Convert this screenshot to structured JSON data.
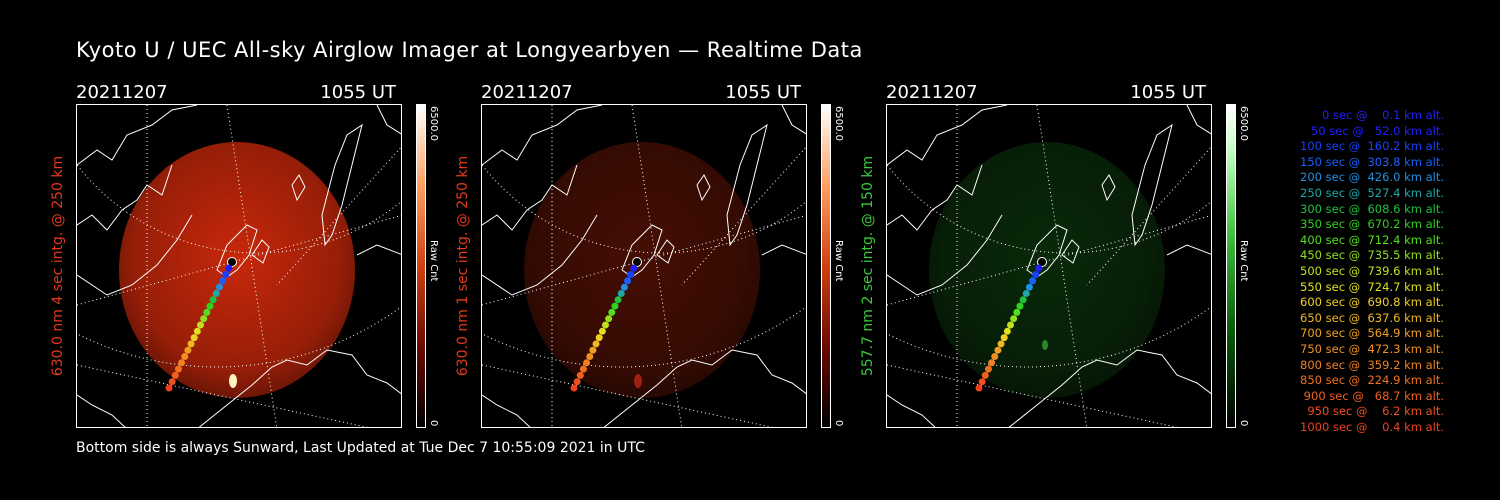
{
  "title": "Kyoto U / UEC All-sky Airglow Imager at Longyearbyen — Realtime Data",
  "panels": [
    {
      "date": "20211207",
      "time": "1055 UT",
      "ylabel": "630.0 nm 4 sec intg. @ 250 km",
      "label_color": "#e03a1a",
      "cbar_max": "6500.0",
      "cbar_min": "0",
      "cbar_name": "Raw Cnt",
      "tint": "red",
      "intensity": 1.0
    },
    {
      "date": "20211207",
      "time": "1055 UT",
      "ylabel": "630.0 nm 1 sec intg. @ 250 km",
      "label_color": "#e03a1a",
      "cbar_max": "6500.0",
      "cbar_min": "0",
      "cbar_name": "Raw Cnt",
      "tint": "red",
      "intensity": 0.35
    },
    {
      "date": "20211207",
      "time": "1055 UT",
      "ylabel": "557.7 nm 2 sec intg. @ 150 km",
      "label_color": "#3ac83a",
      "cbar_max": "6500.0",
      "cbar_min": "0",
      "cbar_name": "Raw Cnt",
      "tint": "green",
      "intensity": 0.45
    }
  ],
  "legend": [
    {
      "text": "   0 sec @    0.1 km alt.",
      "color": "#2020ff"
    },
    {
      "text": "  50 sec @   52.0 km alt.",
      "color": "#2020ff"
    },
    {
      "text": " 100 sec @  160.2 km alt.",
      "color": "#1840ff"
    },
    {
      "text": " 150 sec @  303.8 km alt.",
      "color": "#1a60ff"
    },
    {
      "text": " 200 sec @  426.0 km alt.",
      "color": "#2090e0"
    },
    {
      "text": " 250 sec @  527.4 km alt.",
      "color": "#20a8a8"
    },
    {
      "text": " 300 sec @  608.6 km alt.",
      "color": "#20c040"
    },
    {
      "text": " 350 sec @  670.2 km alt.",
      "color": "#30d020"
    },
    {
      "text": " 400 sec @  712.4 km alt.",
      "color": "#50e020"
    },
    {
      "text": " 450 sec @  735.5 km alt.",
      "color": "#90e020"
    },
    {
      "text": " 500 sec @  739.6 km alt.",
      "color": "#c0e020"
    },
    {
      "text": " 550 sec @  724.7 km alt.",
      "color": "#e0e020"
    },
    {
      "text": " 600 sec @  690.8 km alt.",
      "color": "#f0d020"
    },
    {
      "text": " 650 sec @  637.6 km alt.",
      "color": "#f0b820"
    },
    {
      "text": " 700 sec @  564.9 km alt.",
      "color": "#f0a020"
    },
    {
      "text": " 750 sec @  472.3 km alt.",
      "color": "#f09020"
    },
    {
      "text": " 800 sec @  359.2 km alt.",
      "color": "#f08020"
    },
    {
      "text": " 850 sec @  224.9 km alt.",
      "color": "#f07020"
    },
    {
      "text": " 900 sec @   68.7 km alt.",
      "color": "#f06020"
    },
    {
      "text": " 950 sec @    6.2 km alt.",
      "color": "#f05020"
    },
    {
      "text": "1000 sec @    0.4 km alt.",
      "color": "#f04020"
    }
  ],
  "footer": "Bottom side is always Sunward, Last Updated at Tue Dec  7 10:55:09 2021 in UTC"
}
